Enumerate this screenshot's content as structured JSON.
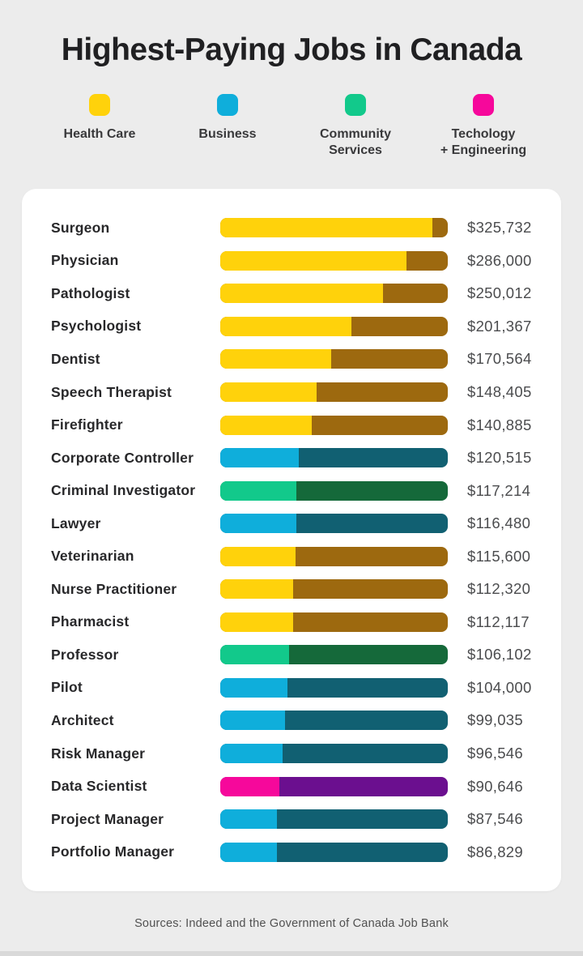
{
  "page": {
    "background_color": "#ECECEC",
    "card_background_color": "#FFFFFF"
  },
  "header": {
    "title": "Highest-Paying Jobs in Canada"
  },
  "legend": {
    "items": [
      {
        "id": "health_care",
        "line1": "Health Care",
        "line2": "",
        "color": "#FFD20B"
      },
      {
        "id": "business",
        "line1": "Business",
        "line2": "",
        "color": "#0FAEDB"
      },
      {
        "id": "community_services",
        "line1": "Community",
        "line2": "Services",
        "color": "#12C98B"
      },
      {
        "id": "tech_engineering",
        "line1": "Techology",
        "line2": "+ Engineering",
        "color": "#F6089B"
      }
    ]
  },
  "chart_data": {
    "type": "bar",
    "orientation": "horizontal",
    "title": "Highest-Paying Jobs in Canada",
    "legend_position": "top",
    "scale_max": 350000,
    "bar_style": "two-tone: light segment length = value / scale_max, dark segment fills remainder of fixed-width track",
    "categories_map": {
      "health_care": {
        "label": "Health Care",
        "light": "#FFD20B",
        "dark": "#9D690F"
      },
      "business": {
        "label": "Business",
        "light": "#0FAEDB",
        "dark": "#116072"
      },
      "community_services": {
        "label": "Community Services",
        "light": "#12C98B",
        "dark": "#15693A"
      },
      "tech_engineering": {
        "label": "Techology + Engineering",
        "light": "#F6089B",
        "dark": "#6B0F8F"
      }
    },
    "rows": [
      {
        "label": "Surgeon",
        "value": 325732,
        "value_label": "$325,732",
        "category": "health_care"
      },
      {
        "label": "Physician",
        "value": 286000,
        "value_label": "$286,000",
        "category": "health_care"
      },
      {
        "label": "Pathologist",
        "value": 250012,
        "value_label": "$250,012",
        "category": "health_care"
      },
      {
        "label": "Psychologist",
        "value": 201367,
        "value_label": "$201,367",
        "category": "health_care"
      },
      {
        "label": "Dentist",
        "value": 170564,
        "value_label": "$170,564",
        "category": "health_care"
      },
      {
        "label": "Speech Therapist",
        "value": 148405,
        "value_label": "$148,405",
        "category": "health_care"
      },
      {
        "label": "Firefighter",
        "value": 140885,
        "value_label": "$140,885",
        "category": "health_care"
      },
      {
        "label": "Corporate Controller",
        "value": 120515,
        "value_label": "$120,515",
        "category": "business"
      },
      {
        "label": "Criminal Investigator",
        "value": 117214,
        "value_label": "$117,214",
        "category": "community_services"
      },
      {
        "label": "Lawyer",
        "value": 116480,
        "value_label": "$116,480",
        "category": "business"
      },
      {
        "label": "Veterinarian",
        "value": 115600,
        "value_label": "$115,600",
        "category": "health_care"
      },
      {
        "label": "Nurse Practitioner",
        "value": 112320,
        "value_label": "$112,320",
        "category": "health_care"
      },
      {
        "label": "Pharmacist",
        "value": 112117,
        "value_label": "$112,117",
        "category": "health_care"
      },
      {
        "label": "Professor",
        "value": 106102,
        "value_label": "$106,102",
        "category": "community_services"
      },
      {
        "label": "Pilot",
        "value": 104000,
        "value_label": "$104,000",
        "category": "business"
      },
      {
        "label": "Architect",
        "value": 99035,
        "value_label": "$99,035",
        "category": "business"
      },
      {
        "label": "Risk Manager",
        "value": 96546,
        "value_label": "$96,546",
        "category": "business"
      },
      {
        "label": "Data Scientist",
        "value": 90646,
        "value_label": "$90,646",
        "category": "tech_engineering"
      },
      {
        "label": "Project Manager",
        "value": 87546,
        "value_label": "$87,546",
        "category": "business"
      },
      {
        "label": "Portfolio Manager",
        "value": 86829,
        "value_label": "$86,829",
        "category": "business"
      }
    ]
  },
  "footer": {
    "source": "Sources: Indeed and the Government of Canada Job Bank"
  }
}
